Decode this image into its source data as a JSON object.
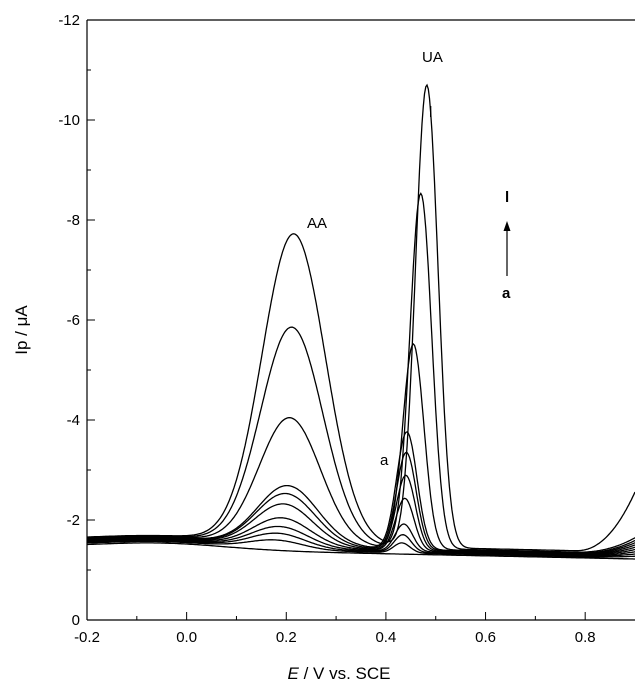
{
  "chart_data": {
    "type": "line",
    "title": "",
    "xlabel_italic": "E",
    "xlabel_rest": " / V vs. SCE",
    "ylabel": "Ip / μA",
    "xlim": [
      -0.2,
      0.9
    ],
    "ylim": [
      0,
      -12
    ],
    "x_ticks": [
      -0.2,
      0.0,
      0.2,
      0.4,
      0.6,
      0.8
    ],
    "x_tick_labels": [
      "-0.2",
      "0.0",
      "0.2",
      "0.4",
      "0.6",
      "0.8"
    ],
    "y_ticks": [
      0,
      -2,
      -4,
      -6,
      -8,
      -10,
      -12
    ],
    "y_tick_labels": [
      "0",
      "-2",
      "-4",
      "-6",
      "-8",
      "-10",
      "-12"
    ],
    "grid": false,
    "annotations": {
      "aa": "AA",
      "ua": "UA",
      "curve_l_top": "l",
      "arrow_top": "l",
      "arrow_bottom": "a",
      "curve_a": "a"
    },
    "series": [
      {
        "base_left": -1.45,
        "base_right": -1.22,
        "aa": 0.0,
        "ua": 0.0,
        "ua_x": 0.43
      },
      {
        "base_left": -1.48,
        "base_right": -1.24,
        "aa": -0.18,
        "ua": -0.2,
        "ua_x": 0.432
      },
      {
        "base_left": -1.5,
        "base_right": -1.25,
        "aa": -0.3,
        "ua": -0.35,
        "ua_x": 0.434
      },
      {
        "base_left": -1.52,
        "base_right": -1.26,
        "aa": -0.42,
        "ua": -0.55,
        "ua_x": 0.436
      },
      {
        "base_left": -1.54,
        "base_right": -1.27,
        "aa": -0.58,
        "ua": -1.05,
        "ua_x": 0.438
      },
      {
        "base_left": -1.55,
        "base_right": -1.28,
        "aa": -0.85,
        "ua": -1.5,
        "ua_x": 0.44
      },
      {
        "base_left": -1.56,
        "base_right": -1.29,
        "aa": -1.05,
        "ua": -1.95,
        "ua_x": 0.441
      },
      {
        "base_left": -1.57,
        "base_right": -1.3,
        "aa": -1.2,
        "ua": -2.35,
        "ua_x": 0.442
      },
      {
        "base_left": -1.58,
        "base_right": -1.31,
        "aa": -2.55,
        "ua": -4.1,
        "ua_x": 0.455
      },
      {
        "base_left": -1.59,
        "base_right": -1.33,
        "aa": -4.35,
        "ua": -7.1,
        "ua_x": 0.47
      },
      {
        "base_left": -1.6,
        "base_right": -1.36,
        "aa": -6.2,
        "ua": -9.25,
        "ua_x": 0.482
      }
    ]
  }
}
